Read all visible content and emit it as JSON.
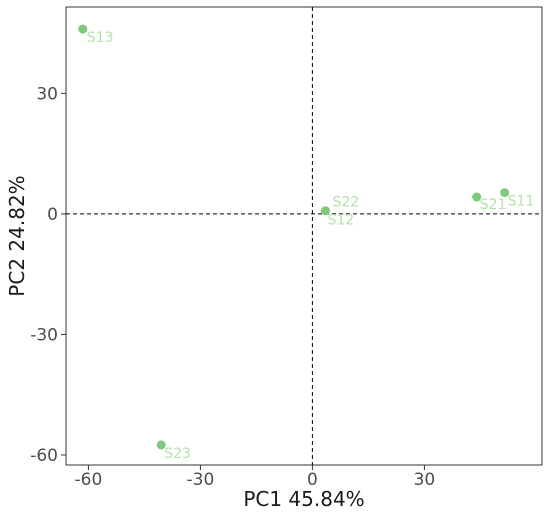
{
  "chart_data": {
    "type": "scatter",
    "xlabel": "PC1 45.84%",
    "ylabel": "PC2 24.82%",
    "xlim": [
      -66,
      61.5
    ],
    "ylim": [
      -62.5,
      51.5
    ],
    "xticks": [
      -60,
      -30,
      0,
      30
    ],
    "yticks": [
      -60,
      -30,
      0,
      30
    ],
    "tick_labels_x": [
      "-60",
      "-30",
      "0",
      "30"
    ],
    "tick_labels_y": [
      "-60",
      "-30",
      "0",
      "30"
    ],
    "reference_lines": {
      "x": 0,
      "y": 0,
      "style": "dashed"
    },
    "grid": false,
    "point_color": "#7fc97f",
    "label_color": "#b2e3a8",
    "points": [
      {
        "label": "S13",
        "x": -61.5,
        "y": 46.0
      },
      {
        "label": "S22",
        "x": 3.5,
        "y": 0.8
      },
      {
        "label": "S12",
        "x": 3.5,
        "y": 0.8
      },
      {
        "label": "S21",
        "x": 44.0,
        "y": 4.2
      },
      {
        "label": "S11",
        "x": 51.5,
        "y": 5.3
      },
      {
        "label": "S23",
        "x": -40.5,
        "y": -57.5
      }
    ]
  }
}
